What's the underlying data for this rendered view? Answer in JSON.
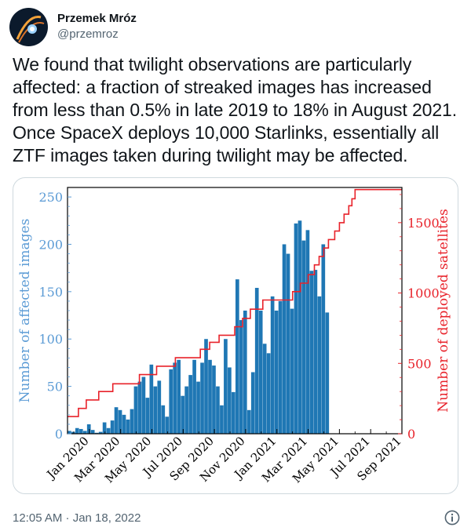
{
  "user": {
    "display_name": "Przemek Mróz",
    "handle": "@przemroz"
  },
  "tweet": {
    "text": "We found that twilight observations are particularly affected: a fraction of streaked images has increased from less than 0.5% in late 2019 to 18% in August 2021. Once SpaceX deploys 10,000 Starlinks, essentially all ZTF images taken during twilight may be affected.",
    "timestamp": "12:05 AM · Jan 18, 2022"
  },
  "icons": {
    "avatar": "avatar-image",
    "info": "info-icon"
  },
  "colors": {
    "bars": "#1f77b4",
    "line": "#e8222a",
    "left_axis": "#5b9bd5",
    "right_axis": "#e8222a"
  },
  "chart_data": {
    "type": "bar+line",
    "xlabel": "",
    "ylabel_left": "Number of affected images",
    "ylabel_right": "Number of deployed satellites",
    "ylim_left": [
      0,
      260
    ],
    "ylim_right": [
      0,
      1750
    ],
    "yticks_left": [
      0,
      50,
      100,
      150,
      200,
      250
    ],
    "yticks_right": [
      0,
      500,
      1000,
      1500
    ],
    "x_tick_labels": [
      "Jan 2020",
      "Mar 2020",
      "May 2020",
      "Jul 2020",
      "Sep 2020",
      "Nov 2020",
      "Jan 2021",
      "Mar 2021",
      "May 2021",
      "Jul 2021",
      "Sep 2021"
    ],
    "x_range_months": [
      -1.4,
      20.0
    ],
    "bars": {
      "name": "Affected images",
      "bin_width_months": 0.25,
      "start_month": -1.4,
      "values": [
        3,
        2,
        6,
        5,
        3,
        10,
        4,
        1,
        2,
        12,
        6,
        14,
        28,
        25,
        20,
        15,
        26,
        50,
        55,
        60,
        38,
        73,
        50,
        56,
        30,
        18,
        68,
        75,
        78,
        40,
        50,
        62,
        78,
        55,
        75,
        100,
        78,
        72,
        50,
        30,
        100,
        70,
        44,
        163,
        120,
        130,
        25,
        65,
        154,
        130,
        95,
        85,
        145,
        130,
        140,
        200,
        190,
        132,
        222,
        225,
        204,
        215,
        172,
        173,
        145,
        200,
        128
      ]
    },
    "line": {
      "name": "Deployed satellites",
      "steps": [
        [
          -1.4,
          122
        ],
        [
          -0.7,
          122
        ],
        [
          -0.7,
          180
        ],
        [
          -0.2,
          180
        ],
        [
          -0.2,
          240
        ],
        [
          0.6,
          240
        ],
        [
          0.6,
          300
        ],
        [
          1.5,
          300
        ],
        [
          1.5,
          355
        ],
        [
          3.2,
          355
        ],
        [
          3.2,
          420
        ],
        [
          4.3,
          420
        ],
        [
          4.3,
          480
        ],
        [
          5.5,
          480
        ],
        [
          5.5,
          540
        ],
        [
          7.1,
          540
        ],
        [
          7.1,
          600
        ],
        [
          7.7,
          600
        ],
        [
          7.7,
          650
        ],
        [
          8.3,
          650
        ],
        [
          8.3,
          700
        ],
        [
          9.3,
          700
        ],
        [
          9.3,
          760
        ],
        [
          9.8,
          760
        ],
        [
          9.8,
          820
        ],
        [
          10.3,
          820
        ],
        [
          10.3,
          885
        ],
        [
          11.1,
          885
        ],
        [
          11.1,
          950
        ],
        [
          13.0,
          950
        ],
        [
          13.0,
          1010
        ],
        [
          13.5,
          1010
        ],
        [
          13.5,
          1070
        ],
        [
          14.0,
          1070
        ],
        [
          14.0,
          1130
        ],
        [
          14.4,
          1130
        ],
        [
          14.4,
          1200
        ],
        [
          14.7,
          1200
        ],
        [
          14.7,
          1260
        ],
        [
          15.0,
          1260
        ],
        [
          15.0,
          1320
        ],
        [
          15.3,
          1320
        ],
        [
          15.3,
          1380
        ],
        [
          15.7,
          1380
        ],
        [
          15.7,
          1440
        ],
        [
          16.0,
          1440
        ],
        [
          16.0,
          1500
        ],
        [
          16.3,
          1500
        ],
        [
          16.3,
          1560
        ],
        [
          16.6,
          1560
        ],
        [
          16.6,
          1620
        ],
        [
          16.8,
          1620
        ],
        [
          16.8,
          1670
        ],
        [
          17.0,
          1670
        ],
        [
          17.0,
          1735
        ],
        [
          20.0,
          1735
        ]
      ]
    }
  }
}
